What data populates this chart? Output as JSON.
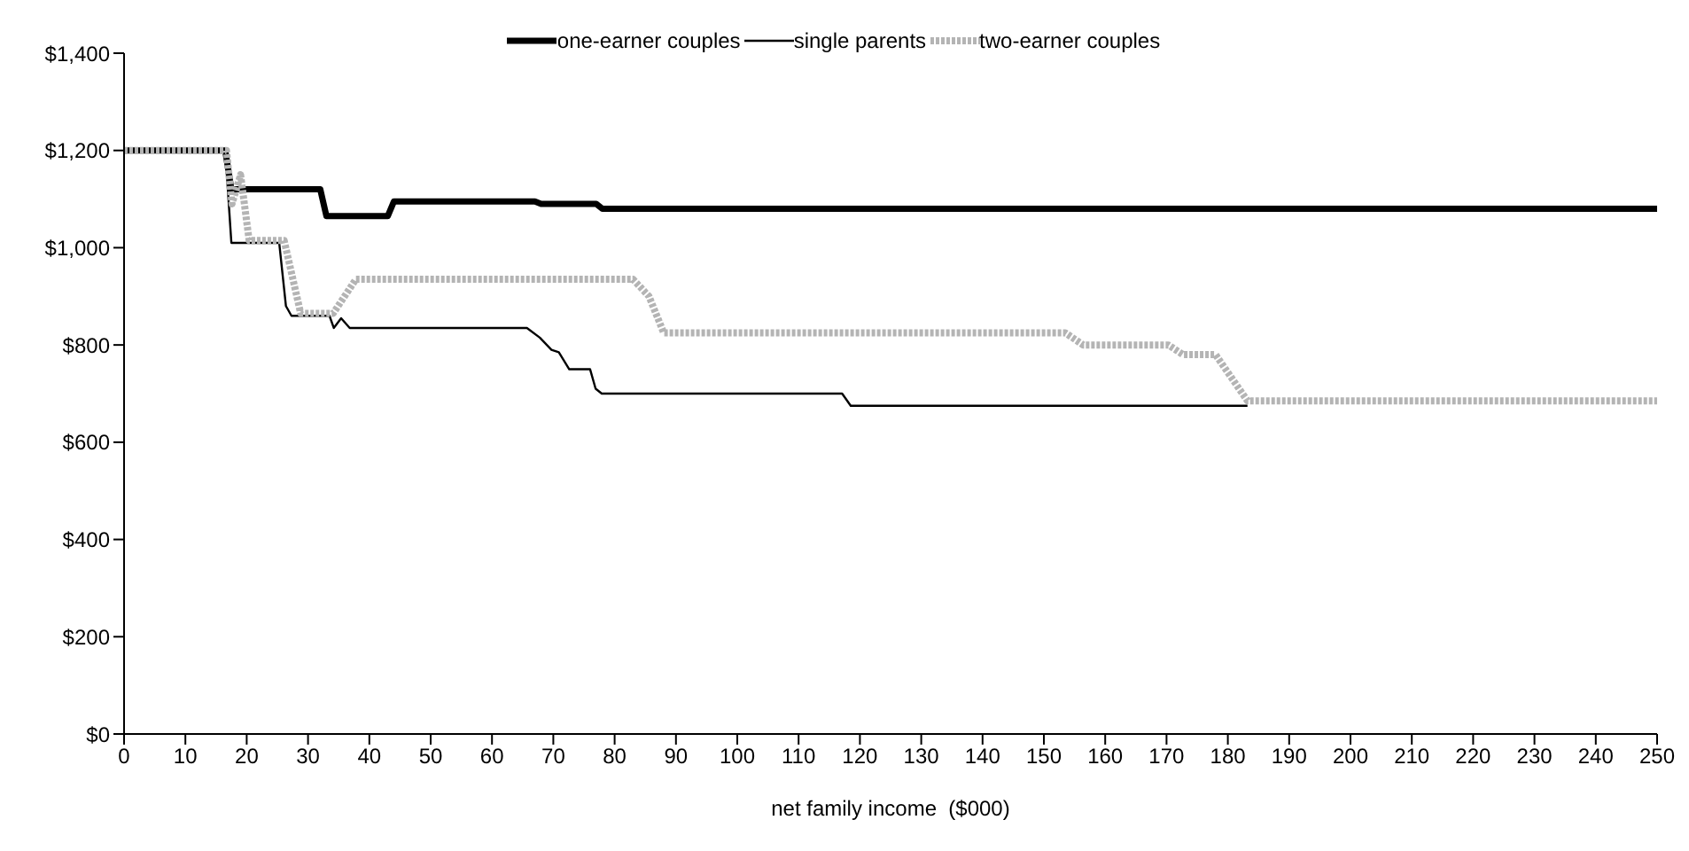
{
  "chart_data": {
    "type": "line",
    "xlabel": "net family income  ($000)",
    "legend": "top",
    "grid": false,
    "marker": "none",
    "xlim": [
      0,
      250
    ],
    "xticks": [
      0,
      10,
      20,
      30,
      40,
      50,
      60,
      70,
      80,
      90,
      100,
      110,
      120,
      130,
      140,
      150,
      160,
      170,
      180,
      190,
      200,
      210,
      220,
      230,
      240,
      250
    ],
    "ylim": [
      0,
      1400
    ],
    "yticks": [
      {
        "value": 0,
        "label": "$0"
      },
      {
        "value": 200,
        "label": "$200"
      },
      {
        "value": 400,
        "label": "$400"
      },
      {
        "value": 600,
        "label": "$600"
      },
      {
        "value": 800,
        "label": "$800"
      },
      {
        "value": 1000,
        "label": "$1,000"
      },
      {
        "value": 1200,
        "label": "$1,200"
      },
      {
        "value": 1400,
        "label": "$1,400"
      }
    ],
    "series": [
      {
        "name": "one-earner couples",
        "color": "#000000",
        "line_style": "solid",
        "x": [
          0,
          16.5,
          17.5,
          18,
          32,
          33,
          43,
          44,
          67,
          68,
          77,
          78,
          250
        ],
        "values": [
          1200,
          1200,
          1120,
          1120,
          1120,
          1065,
          1065,
          1095,
          1095,
          1090,
          1090,
          1080,
          1080
        ]
      },
      {
        "name": "single parents",
        "color": "#000000",
        "line_style": "solid",
        "x": [
          0,
          16.5,
          17.5,
          25.3,
          26.4,
          27.3,
          33.5,
          34.2,
          35.4,
          36.8,
          65.7,
          67.8,
          69.7,
          70.9,
          72.6,
          76,
          76.9,
          77.9,
          117.1,
          118.5,
          183.2
        ],
        "values": [
          1200,
          1200,
          1010,
          1010,
          880,
          860,
          860,
          835,
          855,
          835,
          835,
          815,
          790,
          785,
          750,
          750,
          710,
          700,
          700,
          675,
          675
        ]
      },
      {
        "name": "two-earner couples",
        "color": "#b4b4b4",
        "line_style": "dotted",
        "x": [
          0,
          16.7,
          17.6,
          19,
          20.4,
          26.1,
          28.8,
          34.1,
          37.8,
          83,
          85.6,
          88,
          153.5,
          156.4,
          170.3,
          172.7,
          178,
          183.2,
          250
        ],
        "values": [
          1200,
          1200,
          1090,
          1150,
          1015,
          1015,
          865,
          865,
          935,
          935,
          900,
          825,
          825,
          800,
          800,
          780,
          780,
          685,
          685
        ]
      }
    ]
  }
}
